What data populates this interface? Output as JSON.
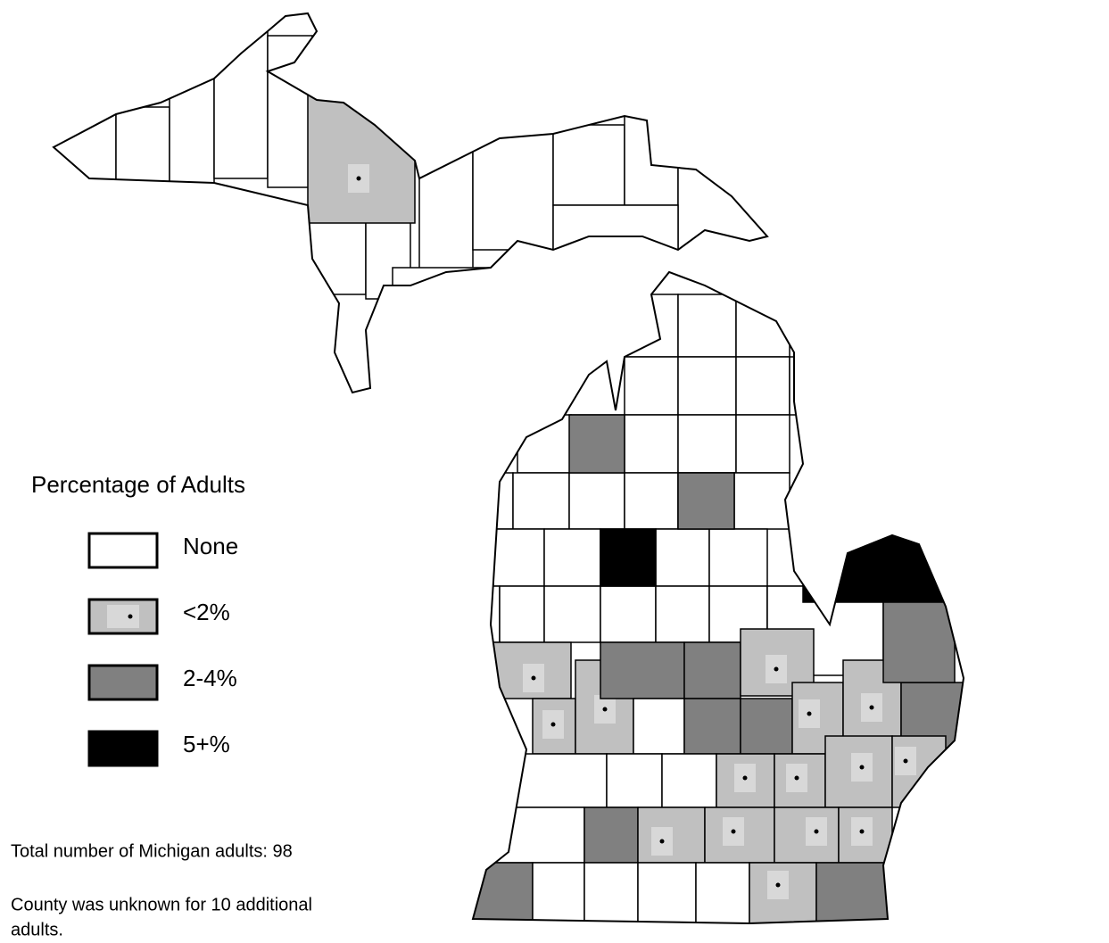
{
  "legend": {
    "title": "Percentage of Adults",
    "items": [
      {
        "label": "None",
        "color": "#ffffff",
        "dot": false
      },
      {
        "label": "<2%",
        "color": "#c0c0c0",
        "dot": true
      },
      {
        "label": "2-4%",
        "color": "#808080",
        "dot": false
      },
      {
        "label": "5+%",
        "color": "#000000",
        "dot": false
      }
    ]
  },
  "notes": [
    "Total number of Michigan adults: 98",
    "County was unknown for 10 additional",
    "adults."
  ]
}
